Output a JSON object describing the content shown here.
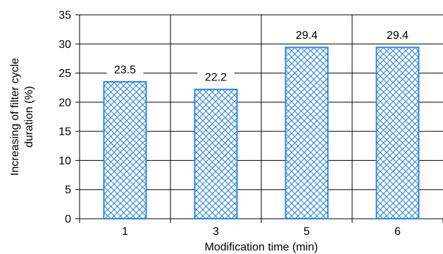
{
  "chart_data": {
    "type": "bar",
    "categories": [
      "1",
      "3",
      "5",
      "6"
    ],
    "values": [
      23.5,
      22.2,
      29.4,
      29.4
    ],
    "data_labels": [
      "23.5",
      "22.2",
      "29.4",
      "29.4"
    ],
    "title": "",
    "xlabel": "Modification time (min)",
    "ylabel": "Increasing of filter cycle duration (%)",
    "ylim": [
      0,
      35
    ],
    "yticks": [
      0,
      5,
      10,
      15,
      20,
      25,
      30,
      35
    ],
    "ytick_labels": [
      "0",
      "5",
      "10",
      "15",
      "20",
      "25",
      "30",
      "35"
    ],
    "grid": true,
    "legend": "none",
    "colors": {
      "bar_edge": "#2e86de",
      "bar_pattern": "#2e86de",
      "bar_fill": "#ffffff",
      "grid": "#000000",
      "axis": "#000000"
    },
    "bar_pattern": "diagonal-crosshatch"
  }
}
